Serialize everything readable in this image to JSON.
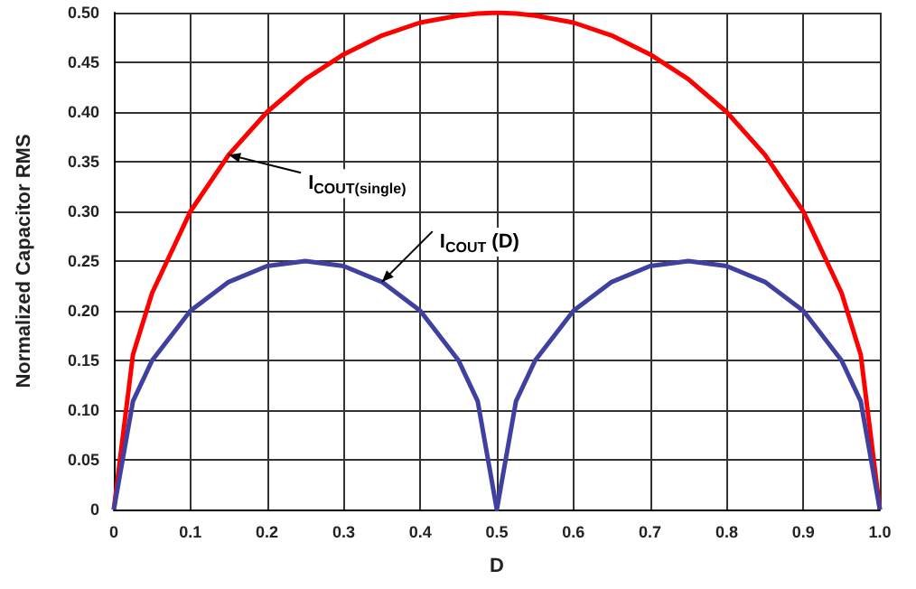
{
  "chart_data": {
    "type": "line",
    "xlabel": "D",
    "ylabel": "Normalized Capacitor RMS",
    "xlim": [
      0,
      1
    ],
    "ylim": [
      0,
      0.5
    ],
    "xticks": [
      0,
      0.1,
      0.2,
      0.3,
      0.4,
      0.5,
      0.6,
      0.7,
      0.8,
      0.9,
      {
        "value": 1,
        "label": "1.0"
      }
    ],
    "yticks": [
      0,
      {
        "value": 0.05,
        "label": "0.05"
      },
      {
        "value": 0.1,
        "label": "0.10"
      },
      {
        "value": 0.15,
        "label": "0.15"
      },
      {
        "value": 0.2,
        "label": "0.20"
      },
      {
        "value": 0.25,
        "label": "0.25"
      },
      {
        "value": 0.3,
        "label": "0.30"
      },
      {
        "value": 0.35,
        "label": "0.35"
      },
      {
        "value": 0.4,
        "label": "0.40"
      },
      {
        "value": 0.45,
        "label": "0.45"
      },
      {
        "value": 0.5,
        "label": "0.50"
      }
    ],
    "grid": true,
    "marker": "none",
    "line_style": "solid",
    "x": [
      0,
      0.025,
      0.05,
      0.1,
      0.15,
      0.2,
      0.25,
      0.3,
      0.35,
      0.4,
      0.45,
      0.475,
      0.5,
      0.525,
      0.55,
      0.6,
      0.65,
      0.7,
      0.75,
      0.8,
      0.85,
      0.9,
      0.95,
      0.975,
      1
    ],
    "series": [
      {
        "color": "#ff0000",
        "values": [
          0,
          0.156,
          0.218,
          0.3,
          0.357,
          0.4,
          0.433,
          0.458,
          0.477,
          0.49,
          0.497,
          0.499,
          0.5,
          0.499,
          0.497,
          0.49,
          0.477,
          0.458,
          0.433,
          0.4,
          0.357,
          0.3,
          0.218,
          0.156,
          0
        ]
      },
      {
        "color": "#4040a0",
        "values": [
          0,
          0.109,
          0.15,
          0.2,
          0.229,
          0.245,
          0.25,
          0.245,
          0.229,
          0.2,
          0.15,
          0.109,
          0,
          0.109,
          0.15,
          0.2,
          0.229,
          0.245,
          0.25,
          0.245,
          0.229,
          0.2,
          0.15,
          0.109,
          0
        ]
      }
    ],
    "annotations": [
      {
        "text": "I$_{COUT(single)}$",
        "x": 0.15,
        "y": 0.357
      },
      {
        "text": "I$_{COUT}$ (D)",
        "x": 0.35,
        "y": 0.229
      }
    ]
  }
}
